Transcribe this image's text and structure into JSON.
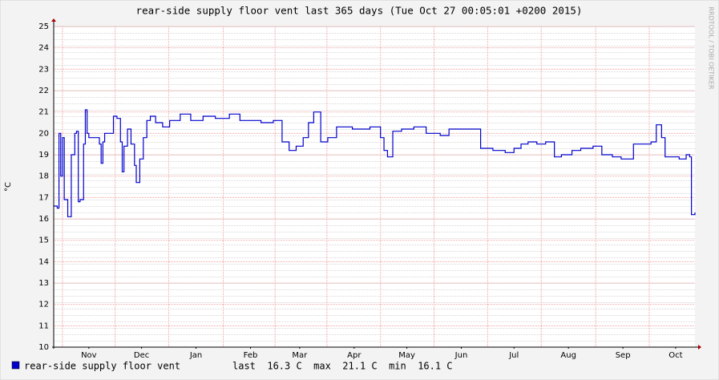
{
  "chart_data": {
    "type": "line",
    "title": "rear-side supply floor vent last 365 days (Tue Oct 27 00:05:01 +0200 2015)",
    "y_label": "°C",
    "watermark": "RRDTOOL / TOBI OETIKER",
    "legend_stats": "last  16.3 C  max  21.1 C  min  16.1 C",
    "x": [
      0,
      2,
      3,
      4,
      5,
      6,
      8,
      10,
      12,
      13,
      14,
      15,
      17,
      18,
      19,
      20,
      23,
      26,
      27,
      28,
      29,
      32,
      34,
      36,
      38,
      39,
      40,
      42,
      44,
      46,
      47,
      49,
      51,
      53,
      55,
      58,
      62,
      66,
      72,
      78,
      85,
      92,
      100,
      106,
      112,
      118,
      125,
      130,
      134,
      138,
      142,
      145,
      148,
      152,
      156,
      161,
      170,
      180,
      186,
      188,
      190,
      193,
      198,
      205,
      212,
      220,
      225,
      233,
      241,
      243,
      250,
      257,
      262,
      266,
      270,
      275,
      280,
      285,
      289,
      295,
      300,
      307,
      312,
      318,
      323,
      330,
      335,
      340,
      343,
      346,
      348,
      352,
      356,
      360,
      362,
      363,
      365
    ],
    "series": [
      {
        "name": "rear-side supply floor vent",
        "color": "#0000cc",
        "values": [
          16.6,
          16.5,
          20,
          18,
          19.8,
          16.9,
          16.1,
          19,
          20,
          20.1,
          16.8,
          16.9,
          19.5,
          21.1,
          20,
          19.8,
          19.8,
          19.5,
          18.6,
          19.6,
          20,
          20,
          20.8,
          20.7,
          19.6,
          18.2,
          19.4,
          20.2,
          19.5,
          18.5,
          17.7,
          18.8,
          19.8,
          20.6,
          20.8,
          20.5,
          20.3,
          20.6,
          20.9,
          20.6,
          20.8,
          20.7,
          20.9,
          20.6,
          20.6,
          20.5,
          20.6,
          19.6,
          19.2,
          19.4,
          19.8,
          20.5,
          21,
          19.6,
          19.8,
          20.3,
          20.2,
          20.3,
          19.8,
          19.2,
          18.9,
          20.1,
          20.2,
          20.3,
          20,
          19.9,
          20.2,
          20.2,
          20.2,
          19.3,
          19.2,
          19.1,
          19.3,
          19.5,
          19.6,
          19.5,
          19.6,
          18.9,
          19,
          19.2,
          19.3,
          19.4,
          19,
          18.9,
          18.8,
          19.5,
          19.5,
          19.6,
          20.4,
          19.8,
          18.9,
          18.9,
          18.8,
          19,
          18.9,
          16.2,
          16.3
        ]
      }
    ],
    "xlim": [
      0,
      365
    ],
    "xticks": [
      {
        "value": 20,
        "label": "Nov"
      },
      {
        "value": 50,
        "label": "Dec"
      },
      {
        "value": 81,
        "label": "Jan"
      },
      {
        "value": 112,
        "label": "Feb"
      },
      {
        "value": 140,
        "label": "Mar"
      },
      {
        "value": 171,
        "label": "Apr"
      },
      {
        "value": 201,
        "label": "May"
      },
      {
        "value": 232,
        "label": "Jun"
      },
      {
        "value": 262,
        "label": "Jul"
      },
      {
        "value": 293,
        "label": "Aug"
      },
      {
        "value": 324,
        "label": "Sep"
      },
      {
        "value": 354,
        "label": "Oct"
      }
    ],
    "ylim": [
      10,
      25
    ],
    "yticks": [
      10,
      11,
      12,
      13,
      14,
      15,
      16,
      17,
      18,
      19,
      20,
      21,
      22,
      23,
      24,
      25
    ],
    "grid": true
  }
}
